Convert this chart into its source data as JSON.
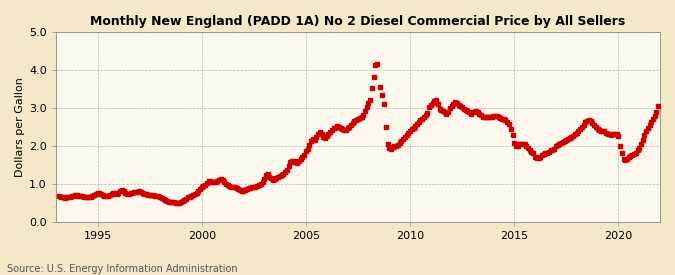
{
  "title": "Monthly New England (PADD 1A) No 2 Diesel Commercial Price by All Sellers",
  "ylabel": "Dollars per Gallon",
  "source": "Source: U.S. Energy Information Administration",
  "background_color": "#f5e8c8",
  "plot_bg_color": "#fdf8ee",
  "dot_color": "#cc0000",
  "dot_size": 4,
  "xlim": [
    1993.0,
    2022.0
  ],
  "ylim": [
    0.0,
    5.0
  ],
  "yticks": [
    0.0,
    1.0,
    2.0,
    3.0,
    4.0,
    5.0
  ],
  "xticks": [
    1995,
    2000,
    2005,
    2010,
    2015,
    2020
  ],
  "grid_color": "#bbbbbb",
  "data": [
    [
      1993.17,
      0.68
    ],
    [
      1993.25,
      0.65
    ],
    [
      1993.33,
      0.64
    ],
    [
      1993.42,
      0.63
    ],
    [
      1993.5,
      0.65
    ],
    [
      1993.58,
      0.65
    ],
    [
      1993.67,
      0.65
    ],
    [
      1993.75,
      0.67
    ],
    [
      1993.83,
      0.68
    ],
    [
      1993.92,
      0.7
    ],
    [
      1994.0,
      0.71
    ],
    [
      1994.08,
      0.69
    ],
    [
      1994.17,
      0.69
    ],
    [
      1994.25,
      0.67
    ],
    [
      1994.33,
      0.66
    ],
    [
      1994.42,
      0.65
    ],
    [
      1994.5,
      0.65
    ],
    [
      1994.58,
      0.65
    ],
    [
      1994.67,
      0.65
    ],
    [
      1994.75,
      0.67
    ],
    [
      1994.83,
      0.7
    ],
    [
      1994.92,
      0.72
    ],
    [
      1995.0,
      0.75
    ],
    [
      1995.08,
      0.75
    ],
    [
      1995.17,
      0.72
    ],
    [
      1995.25,
      0.7
    ],
    [
      1995.33,
      0.68
    ],
    [
      1995.42,
      0.67
    ],
    [
      1995.5,
      0.68
    ],
    [
      1995.58,
      0.7
    ],
    [
      1995.67,
      0.72
    ],
    [
      1995.75,
      0.75
    ],
    [
      1995.83,
      0.76
    ],
    [
      1995.92,
      0.74
    ],
    [
      1996.0,
      0.76
    ],
    [
      1996.08,
      0.82
    ],
    [
      1996.17,
      0.83
    ],
    [
      1996.25,
      0.8
    ],
    [
      1996.33,
      0.75
    ],
    [
      1996.42,
      0.72
    ],
    [
      1996.5,
      0.72
    ],
    [
      1996.58,
      0.75
    ],
    [
      1996.67,
      0.75
    ],
    [
      1996.75,
      0.77
    ],
    [
      1996.83,
      0.78
    ],
    [
      1996.92,
      0.79
    ],
    [
      1997.0,
      0.8
    ],
    [
      1997.08,
      0.79
    ],
    [
      1997.17,
      0.76
    ],
    [
      1997.25,
      0.73
    ],
    [
      1997.33,
      0.72
    ],
    [
      1997.42,
      0.7
    ],
    [
      1997.5,
      0.7
    ],
    [
      1997.58,
      0.7
    ],
    [
      1997.67,
      0.7
    ],
    [
      1997.75,
      0.68
    ],
    [
      1997.83,
      0.68
    ],
    [
      1997.92,
      0.67
    ],
    [
      1998.0,
      0.65
    ],
    [
      1998.08,
      0.62
    ],
    [
      1998.17,
      0.6
    ],
    [
      1998.25,
      0.57
    ],
    [
      1998.33,
      0.55
    ],
    [
      1998.42,
      0.53
    ],
    [
      1998.5,
      0.52
    ],
    [
      1998.58,
      0.52
    ],
    [
      1998.67,
      0.51
    ],
    [
      1998.75,
      0.5
    ],
    [
      1998.83,
      0.5
    ],
    [
      1998.92,
      0.5
    ],
    [
      1999.0,
      0.53
    ],
    [
      1999.08,
      0.55
    ],
    [
      1999.17,
      0.58
    ],
    [
      1999.25,
      0.61
    ],
    [
      1999.33,
      0.64
    ],
    [
      1999.42,
      0.66
    ],
    [
      1999.5,
      0.68
    ],
    [
      1999.58,
      0.71
    ],
    [
      1999.67,
      0.73
    ],
    [
      1999.75,
      0.76
    ],
    [
      1999.83,
      0.82
    ],
    [
      1999.92,
      0.87
    ],
    [
      2000.0,
      0.92
    ],
    [
      2000.08,
      0.94
    ],
    [
      2000.17,
      0.97
    ],
    [
      2000.25,
      1.02
    ],
    [
      2000.33,
      1.07
    ],
    [
      2000.42,
      1.06
    ],
    [
      2000.5,
      1.05
    ],
    [
      2000.58,
      1.05
    ],
    [
      2000.67,
      1.04
    ],
    [
      2000.75,
      1.08
    ],
    [
      2000.83,
      1.11
    ],
    [
      2000.92,
      1.13
    ],
    [
      2001.0,
      1.1
    ],
    [
      2001.08,
      1.04
    ],
    [
      2001.17,
      1.0
    ],
    [
      2001.25,
      0.97
    ],
    [
      2001.33,
      0.94
    ],
    [
      2001.42,
      0.92
    ],
    [
      2001.5,
      0.92
    ],
    [
      2001.58,
      0.92
    ],
    [
      2001.67,
      0.89
    ],
    [
      2001.75,
      0.87
    ],
    [
      2001.83,
      0.84
    ],
    [
      2001.92,
      0.82
    ],
    [
      2002.0,
      0.82
    ],
    [
      2002.08,
      0.83
    ],
    [
      2002.17,
      0.85
    ],
    [
      2002.25,
      0.88
    ],
    [
      2002.33,
      0.9
    ],
    [
      2002.42,
      0.91
    ],
    [
      2002.5,
      0.92
    ],
    [
      2002.58,
      0.92
    ],
    [
      2002.67,
      0.94
    ],
    [
      2002.75,
      0.97
    ],
    [
      2002.83,
      1.0
    ],
    [
      2002.92,
      1.05
    ],
    [
      2003.0,
      1.12
    ],
    [
      2003.08,
      1.22
    ],
    [
      2003.17,
      1.26
    ],
    [
      2003.25,
      1.19
    ],
    [
      2003.33,
      1.14
    ],
    [
      2003.42,
      1.1
    ],
    [
      2003.5,
      1.12
    ],
    [
      2003.58,
      1.14
    ],
    [
      2003.67,
      1.17
    ],
    [
      2003.75,
      1.2
    ],
    [
      2003.83,
      1.22
    ],
    [
      2003.92,
      1.25
    ],
    [
      2004.0,
      1.31
    ],
    [
      2004.08,
      1.37
    ],
    [
      2004.17,
      1.47
    ],
    [
      2004.25,
      1.57
    ],
    [
      2004.33,
      1.61
    ],
    [
      2004.42,
      1.6
    ],
    [
      2004.5,
      1.57
    ],
    [
      2004.58,
      1.55
    ],
    [
      2004.67,
      1.6
    ],
    [
      2004.75,
      1.65
    ],
    [
      2004.83,
      1.71
    ],
    [
      2004.92,
      1.76
    ],
    [
      2005.0,
      1.86
    ],
    [
      2005.08,
      1.92
    ],
    [
      2005.17,
      2.02
    ],
    [
      2005.25,
      2.12
    ],
    [
      2005.33,
      2.17
    ],
    [
      2005.42,
      2.16
    ],
    [
      2005.5,
      2.22
    ],
    [
      2005.58,
      2.32
    ],
    [
      2005.67,
      2.37
    ],
    [
      2005.75,
      2.3
    ],
    [
      2005.83,
      2.24
    ],
    [
      2005.92,
      2.2
    ],
    [
      2006.0,
      2.26
    ],
    [
      2006.08,
      2.31
    ],
    [
      2006.17,
      2.36
    ],
    [
      2006.25,
      2.41
    ],
    [
      2006.33,
      2.46
    ],
    [
      2006.42,
      2.46
    ],
    [
      2006.5,
      2.51
    ],
    [
      2006.58,
      2.49
    ],
    [
      2006.67,
      2.46
    ],
    [
      2006.75,
      2.43
    ],
    [
      2006.83,
      2.41
    ],
    [
      2006.92,
      2.41
    ],
    [
      2007.0,
      2.46
    ],
    [
      2007.08,
      2.49
    ],
    [
      2007.17,
      2.56
    ],
    [
      2007.25,
      2.61
    ],
    [
      2007.33,
      2.66
    ],
    [
      2007.42,
      2.69
    ],
    [
      2007.5,
      2.71
    ],
    [
      2007.58,
      2.73
    ],
    [
      2007.67,
      2.76
    ],
    [
      2007.75,
      2.82
    ],
    [
      2007.83,
      2.92
    ],
    [
      2007.92,
      3.02
    ],
    [
      2008.0,
      3.12
    ],
    [
      2008.08,
      3.22
    ],
    [
      2008.17,
      3.52
    ],
    [
      2008.25,
      3.82
    ],
    [
      2008.33,
      4.12
    ],
    [
      2008.42,
      4.15
    ],
    [
      2008.58,
      3.55
    ],
    [
      2008.67,
      3.35
    ],
    [
      2008.75,
      3.1
    ],
    [
      2008.83,
      2.5
    ],
    [
      2008.92,
      2.05
    ],
    [
      2009.0,
      1.95
    ],
    [
      2009.08,
      1.92
    ],
    [
      2009.17,
      1.97
    ],
    [
      2009.25,
      1.99
    ],
    [
      2009.33,
      2.0
    ],
    [
      2009.42,
      2.02
    ],
    [
      2009.5,
      2.08
    ],
    [
      2009.58,
      2.12
    ],
    [
      2009.67,
      2.18
    ],
    [
      2009.75,
      2.22
    ],
    [
      2009.83,
      2.28
    ],
    [
      2009.92,
      2.33
    ],
    [
      2010.0,
      2.38
    ],
    [
      2010.08,
      2.43
    ],
    [
      2010.17,
      2.47
    ],
    [
      2010.25,
      2.52
    ],
    [
      2010.33,
      2.57
    ],
    [
      2010.42,
      2.62
    ],
    [
      2010.5,
      2.67
    ],
    [
      2010.58,
      2.71
    ],
    [
      2010.67,
      2.75
    ],
    [
      2010.75,
      2.8
    ],
    [
      2010.83,
      2.87
    ],
    [
      2010.92,
      3.02
    ],
    [
      2011.0,
      3.08
    ],
    [
      2011.08,
      3.12
    ],
    [
      2011.17,
      3.18
    ],
    [
      2011.25,
      3.22
    ],
    [
      2011.33,
      3.1
    ],
    [
      2011.42,
      2.98
    ],
    [
      2011.5,
      2.95
    ],
    [
      2011.58,
      2.92
    ],
    [
      2011.67,
      2.88
    ],
    [
      2011.75,
      2.85
    ],
    [
      2011.83,
      2.9
    ],
    [
      2011.92,
      3.0
    ],
    [
      2012.0,
      3.05
    ],
    [
      2012.08,
      3.1
    ],
    [
      2012.17,
      3.15
    ],
    [
      2012.25,
      3.12
    ],
    [
      2012.33,
      3.08
    ],
    [
      2012.42,
      3.05
    ],
    [
      2012.5,
      3.02
    ],
    [
      2012.58,
      2.98
    ],
    [
      2012.67,
      2.95
    ],
    [
      2012.75,
      2.92
    ],
    [
      2012.83,
      2.88
    ],
    [
      2012.92,
      2.85
    ],
    [
      2013.0,
      2.9
    ],
    [
      2013.08,
      2.88
    ],
    [
      2013.17,
      2.92
    ],
    [
      2013.25,
      2.9
    ],
    [
      2013.33,
      2.85
    ],
    [
      2013.42,
      2.8
    ],
    [
      2013.5,
      2.75
    ],
    [
      2013.58,
      2.75
    ],
    [
      2013.67,
      2.75
    ],
    [
      2013.75,
      2.75
    ],
    [
      2013.83,
      2.75
    ],
    [
      2013.92,
      2.75
    ],
    [
      2014.0,
      2.78
    ],
    [
      2014.08,
      2.78
    ],
    [
      2014.17,
      2.78
    ],
    [
      2014.25,
      2.76
    ],
    [
      2014.33,
      2.73
    ],
    [
      2014.42,
      2.7
    ],
    [
      2014.5,
      2.7
    ],
    [
      2014.58,
      2.68
    ],
    [
      2014.67,
      2.63
    ],
    [
      2014.75,
      2.58
    ],
    [
      2014.83,
      2.43
    ],
    [
      2014.92,
      2.28
    ],
    [
      2015.0,
      2.08
    ],
    [
      2015.08,
      2.0
    ],
    [
      2015.17,
      2.0
    ],
    [
      2015.25,
      2.05
    ],
    [
      2015.33,
      2.05
    ],
    [
      2015.42,
      2.05
    ],
    [
      2015.5,
      2.05
    ],
    [
      2015.58,
      2.0
    ],
    [
      2015.67,
      1.95
    ],
    [
      2015.75,
      1.9
    ],
    [
      2015.83,
      1.85
    ],
    [
      2015.92,
      1.8
    ],
    [
      2016.0,
      1.7
    ],
    [
      2016.08,
      1.68
    ],
    [
      2016.17,
      1.68
    ],
    [
      2016.25,
      1.7
    ],
    [
      2016.33,
      1.75
    ],
    [
      2016.42,
      1.78
    ],
    [
      2016.5,
      1.8
    ],
    [
      2016.58,
      1.82
    ],
    [
      2016.67,
      1.85
    ],
    [
      2016.75,
      1.88
    ],
    [
      2016.83,
      1.9
    ],
    [
      2016.92,
      1.92
    ],
    [
      2017.0,
      2.0
    ],
    [
      2017.08,
      2.02
    ],
    [
      2017.17,
      2.05
    ],
    [
      2017.25,
      2.08
    ],
    [
      2017.33,
      2.1
    ],
    [
      2017.42,
      2.12
    ],
    [
      2017.5,
      2.15
    ],
    [
      2017.58,
      2.18
    ],
    [
      2017.67,
      2.2
    ],
    [
      2017.75,
      2.22
    ],
    [
      2017.83,
      2.25
    ],
    [
      2017.92,
      2.3
    ],
    [
      2018.0,
      2.35
    ],
    [
      2018.08,
      2.4
    ],
    [
      2018.17,
      2.45
    ],
    [
      2018.25,
      2.5
    ],
    [
      2018.33,
      2.55
    ],
    [
      2018.42,
      2.62
    ],
    [
      2018.5,
      2.65
    ],
    [
      2018.58,
      2.68
    ],
    [
      2018.67,
      2.65
    ],
    [
      2018.75,
      2.6
    ],
    [
      2018.83,
      2.55
    ],
    [
      2018.92,
      2.5
    ],
    [
      2019.0,
      2.45
    ],
    [
      2019.08,
      2.42
    ],
    [
      2019.17,
      2.4
    ],
    [
      2019.25,
      2.4
    ],
    [
      2019.33,
      2.38
    ],
    [
      2019.42,
      2.35
    ],
    [
      2019.5,
      2.32
    ],
    [
      2019.58,
      2.3
    ],
    [
      2019.67,
      2.28
    ],
    [
      2019.75,
      2.3
    ],
    [
      2019.83,
      2.32
    ],
    [
      2019.92,
      2.3
    ],
    [
      2020.0,
      2.25
    ],
    [
      2020.08,
      2.0
    ],
    [
      2020.17,
      1.8
    ],
    [
      2020.25,
      1.65
    ],
    [
      2020.33,
      1.62
    ],
    [
      2020.42,
      1.65
    ],
    [
      2020.5,
      1.7
    ],
    [
      2020.58,
      1.72
    ],
    [
      2020.67,
      1.75
    ],
    [
      2020.75,
      1.78
    ],
    [
      2020.83,
      1.82
    ],
    [
      2020.92,
      1.88
    ],
    [
      2021.0,
      1.95
    ],
    [
      2021.08,
      2.05
    ],
    [
      2021.17,
      2.15
    ],
    [
      2021.25,
      2.28
    ],
    [
      2021.33,
      2.4
    ],
    [
      2021.42,
      2.48
    ],
    [
      2021.5,
      2.55
    ],
    [
      2021.58,
      2.62
    ],
    [
      2021.67,
      2.7
    ],
    [
      2021.75,
      2.78
    ],
    [
      2021.83,
      2.88
    ],
    [
      2021.92,
      3.05
    ]
  ]
}
